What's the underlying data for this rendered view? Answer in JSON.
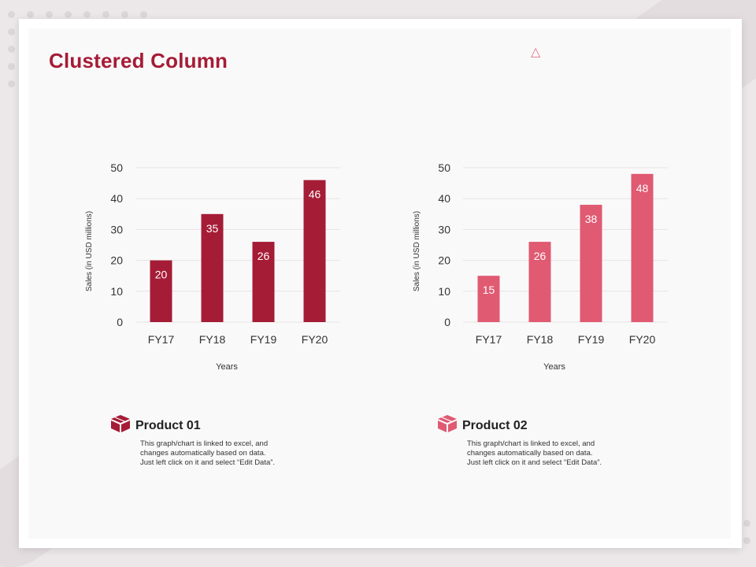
{
  "slide": {
    "title": "Clustered Column"
  },
  "products": [
    {
      "name": "Product 01",
      "description": "This graph/chart is linked to excel, and\nchanges automatically based on data.\nJust left click on it and select “Edit Data”.",
      "icon": "box-icon",
      "color": "#a51c36"
    },
    {
      "name": "Product 02",
      "description": "This graph/chart is linked to excel, and\nchanges automatically based on data.\nJust left click on it and select “Edit Data”.",
      "icon": "box-icon",
      "color": "#e05a72"
    }
  ],
  "chart_data": [
    {
      "type": "bar",
      "categories": [
        "FY17",
        "FY18",
        "FY19",
        "FY20"
      ],
      "values": [
        20,
        35,
        26,
        46
      ],
      "xlabel": "Years",
      "ylabel": "Sales (in USD millions)",
      "ylim": [
        0,
        50
      ],
      "yticks": [
        0,
        10,
        20,
        30,
        40,
        50
      ],
      "grid": true,
      "legend": "none",
      "color": "#a51c36"
    },
    {
      "type": "bar",
      "categories": [
        "FY17",
        "FY18",
        "FY19",
        "FY20"
      ],
      "values": [
        15,
        26,
        38,
        48
      ],
      "xlabel": "Years",
      "ylabel": "Sales (in USD millions)",
      "ylim": [
        0,
        50
      ],
      "yticks": [
        0,
        10,
        20,
        30,
        40,
        50
      ],
      "grid": true,
      "legend": "none",
      "color": "#e05a72"
    }
  ]
}
